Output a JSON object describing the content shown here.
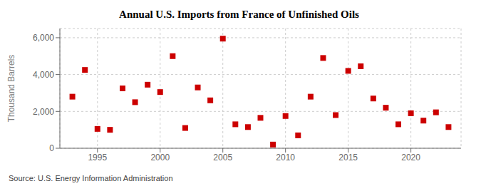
{
  "chart_data": {
    "type": "scatter",
    "title": "Annual U.S. Imports from France of Unfinished Oils",
    "ylabel": "Thousand Barrels",
    "annotations": [
      "Source: U.S. Energy Information Administration"
    ],
    "x": [
      1993,
      1994,
      1995,
      1996,
      1997,
      1998,
      1999,
      2000,
      2001,
      2002,
      2003,
      2004,
      2005,
      2006,
      2007,
      2008,
      2009,
      2010,
      2011,
      2012,
      2013,
      2014,
      2015,
      2016,
      2017,
      2018,
      2019,
      2020,
      2021,
      2022,
      2023
    ],
    "values": [
      2800,
      4250,
      1050,
      1000,
      3250,
      2500,
      3450,
      3050,
      5000,
      1100,
      3300,
      2600,
      5950,
      1300,
      1150,
      1650,
      200,
      1750,
      700,
      2800,
      4900,
      1800,
      4200,
      4450,
      2700,
      2200,
      1300,
      1900,
      1500,
      1950,
      1150
    ],
    "color": "#cc0000",
    "marker": "square",
    "grid": true,
    "xlim": [
      1992,
      2024
    ],
    "xticks": [
      1995,
      2000,
      2005,
      2010,
      2015,
      2020
    ],
    "ylim": [
      0,
      6500
    ],
    "yticks": [
      0,
      {
        "value": 2000,
        "label": "2,000"
      },
      {
        "value": 4000,
        "label": "4,000"
      },
      {
        "value": 6000,
        "label": "6,000"
      }
    ]
  }
}
